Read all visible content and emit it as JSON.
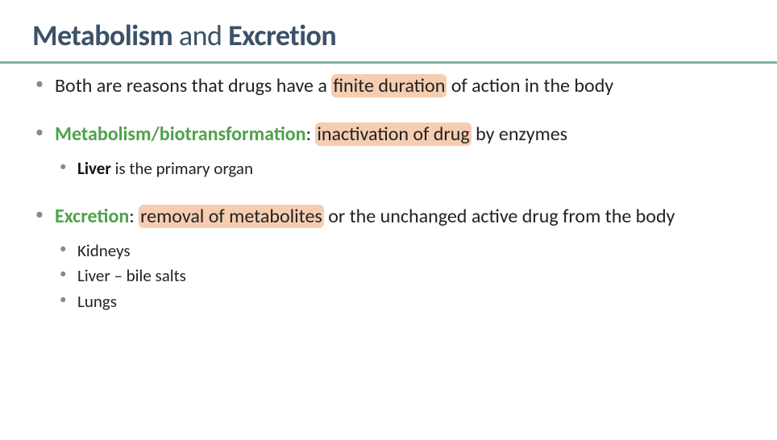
{
  "colors": {
    "title": "#3c5169",
    "rule": "#7fb2ad",
    "bullet": "#8a8a8a",
    "green": "#4fa24a",
    "highlight": "#f6cdb0",
    "text": "#222222",
    "background": "#ffffff"
  },
  "typography": {
    "title_fontsize": 36,
    "body_fontsize": 24,
    "sub_fontsize": 21,
    "font_family": "Gill Sans"
  },
  "title": {
    "part1_bold": "Metabolism",
    "part2_normal": " and ",
    "part3_bold": "Excretion"
  },
  "bullets": [
    {
      "segments": [
        {
          "text": "Both are reasons that drugs have a "
        },
        {
          "text": "finite duration",
          "highlight": true
        },
        {
          "text": " of action in the body"
        }
      ]
    },
    {
      "segments": [
        {
          "text": "Metabolism/biotransformation",
          "green_bold": true
        },
        {
          "text": ": "
        },
        {
          "text": "inactivation of drug",
          "highlight": true
        },
        {
          "text": " by enzymes"
        }
      ],
      "sub": [
        {
          "segments": [
            {
              "text": "Liver",
              "black_bold": true
            },
            {
              "text": " is the primary organ"
            }
          ]
        }
      ]
    },
    {
      "segments": [
        {
          "text": "Excretion",
          "green_bold": true
        },
        {
          "text": ": "
        },
        {
          "text": "removal of metabolites",
          "highlight": true
        },
        {
          "text": " or the unchanged active drug from the body"
        }
      ],
      "sub": [
        {
          "segments": [
            {
              "text": "Kidneys"
            }
          ]
        },
        {
          "segments": [
            {
              "text": "Liver – bile salts"
            }
          ]
        },
        {
          "segments": [
            {
              "text": "Lungs"
            }
          ]
        }
      ]
    }
  ]
}
